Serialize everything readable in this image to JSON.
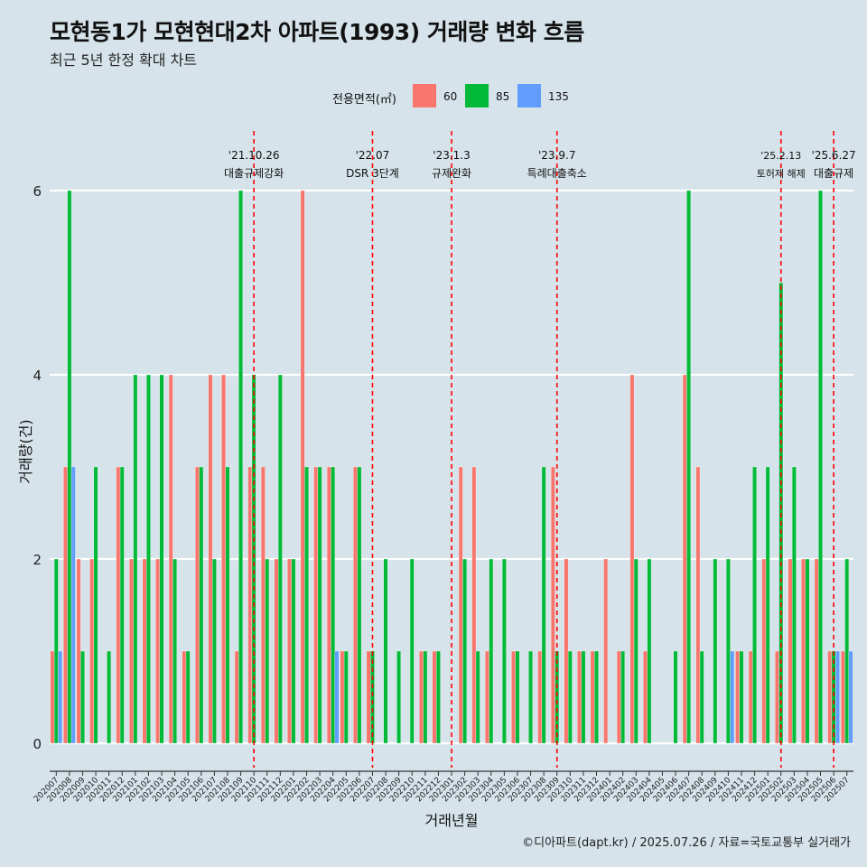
{
  "chart_data": {
    "type": "bar",
    "title": "모현동1가 모현현대2차 아파트(1993) 거래량 변화 흐름",
    "subtitle": "최근 5년 한정 확대 차트",
    "xlabel": "거래년월",
    "ylabel": "거래량(건)",
    "ylim": [
      0,
      6.5
    ],
    "yticks": [
      0,
      2,
      4,
      6
    ],
    "grid": true,
    "caption": "©디아파트(dapt.kr) / 2025.07.26 / 자료=국토교통부 실거래가",
    "legend": {
      "title": "전용면적(㎡)",
      "position": "top"
    },
    "colors": {
      "60": "#f8766d",
      "85": "#00ba38",
      "135": "#619cff",
      "event_line": "#ff0000",
      "grid": "#ffffff",
      "background": "#d6e3ea"
    },
    "categories": [
      "202007",
      "202008",
      "202009",
      "202010",
      "202011",
      "202012",
      "202101",
      "202102",
      "202103",
      "202104",
      "202105",
      "202106",
      "202107",
      "202108",
      "202109",
      "202110",
      "202111",
      "202112",
      "202201",
      "202202",
      "202203",
      "202204",
      "202205",
      "202206",
      "202207",
      "202208",
      "202209",
      "202210",
      "202211",
      "202212",
      "202301",
      "202302",
      "202303",
      "202304",
      "202305",
      "202306",
      "202307",
      "202308",
      "202309",
      "202310",
      "202311",
      "202312",
      "202401",
      "202402",
      "202403",
      "202404",
      "202405",
      "202406",
      "202407",
      "202408",
      "202409",
      "202410",
      "202411",
      "202412",
      "202501",
      "202502",
      "202503",
      "202504",
      "202505",
      "202506",
      "202507"
    ],
    "series": [
      {
        "name": "60",
        "values": [
          1,
          3,
          2,
          2,
          0,
          3,
          2,
          2,
          2,
          4,
          1,
          3,
          4,
          4,
          1,
          3,
          3,
          2,
          2,
          6,
          3,
          3,
          1,
          3,
          1,
          0,
          0,
          0,
          1,
          1,
          0,
          3,
          3,
          1,
          0,
          1,
          0,
          1,
          3,
          2,
          1,
          1,
          2,
          1,
          4,
          1,
          0,
          0,
          4,
          3,
          0,
          0,
          1,
          1,
          2,
          1,
          2,
          2,
          2,
          1,
          1
        ]
      },
      {
        "name": "85",
        "values": [
          2,
          6,
          1,
          3,
          1,
          3,
          4,
          4,
          4,
          2,
          1,
          3,
          2,
          3,
          6,
          4,
          2,
          4,
          2,
          3,
          3,
          3,
          1,
          3,
          1,
          2,
          1,
          2,
          1,
          1,
          0,
          2,
          1,
          2,
          2,
          1,
          1,
          3,
          1,
          1,
          1,
          1,
          0,
          1,
          2,
          2,
          0,
          1,
          6,
          1,
          2,
          2,
          1,
          3,
          3,
          5,
          3,
          2,
          6,
          1,
          2
        ]
      },
      {
        "name": "135",
        "values": [
          1,
          3,
          0,
          0,
          0,
          0,
          0,
          0,
          0,
          0,
          0,
          0,
          0,
          0,
          0,
          0,
          0,
          0,
          0,
          0,
          0,
          1,
          0,
          0,
          0,
          0,
          0,
          0,
          0,
          0,
          0,
          0,
          0,
          0,
          0,
          0,
          0,
          0,
          0,
          0,
          0,
          0,
          0,
          0,
          0,
          0,
          0,
          0,
          0,
          0,
          0,
          1,
          0,
          0,
          0,
          0,
          0,
          0,
          0,
          1,
          1
        ]
      }
    ],
    "events": [
      {
        "month": "202110",
        "date": "'21.10.26",
        "label": "대출규제강화"
      },
      {
        "month": "202207",
        "date": "'22.07",
        "label": "DSR 3단계"
      },
      {
        "month": "202301",
        "date": "'23.1.3",
        "label": "규제완화"
      },
      {
        "month": "202309",
        "date": "'23.9.7",
        "label": "특례대출축소"
      },
      {
        "month": "202502",
        "date": "'25.2.13",
        "label": "토허제 해제"
      },
      {
        "month": "202506",
        "date": "'25.6.27",
        "label": "대출규제"
      }
    ]
  }
}
